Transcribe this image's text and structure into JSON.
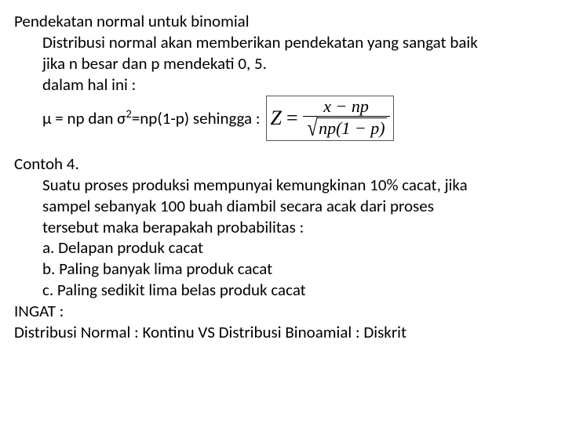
{
  "section1": {
    "title": "Pendekatan normal untuk binomial",
    "line1": "Distribusi normal akan memberikan pendekatan yang sangat baik",
    "line2": "jika n besar dan p mendekati 0, 5.",
    "line3": "dalam hal ini :",
    "line4_prefix": "μ = np  dan  σ",
    "line4_suffix": "=np(1-p) sehingga :"
  },
  "formula": {
    "Z": "Z",
    "eq": "=",
    "num": "x − np",
    "den_inner": "np(1 − p)"
  },
  "section2": {
    "title": "Contoh 4.",
    "line1": "Suatu proses produksi mempunyai kemungkinan 10% cacat, jika",
    "line2": "sampel sebanyak 100 buah diambil secara acak  dari proses",
    "line3": "tersebut maka berapakah probabilitas :",
    "item_a": "a. Delapan produk cacat",
    "item_b": "b. Paling banyak lima produk cacat",
    "item_c": "c. Paling sedikit lima belas produk cacat"
  },
  "footer": {
    "ingat": "INGAT :",
    "line": "Distribusi Normal : Kontinu  VS  Distribusi Binoamial : Diskrit"
  }
}
